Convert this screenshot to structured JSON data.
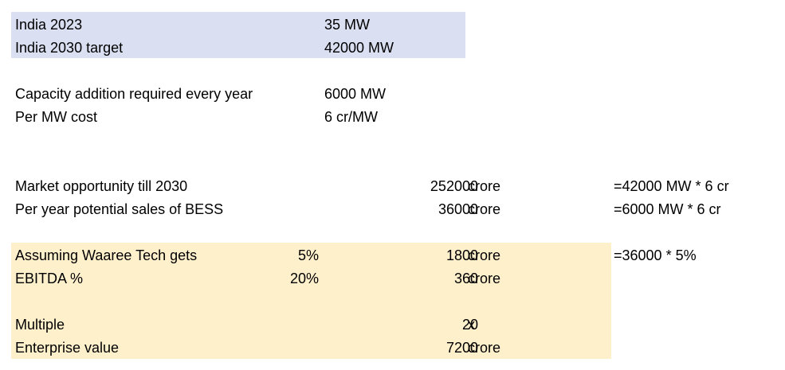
{
  "india": {
    "row_2023": {
      "label": "India 2023",
      "value": "35 MW"
    },
    "row_2030": {
      "label": "India 2030 target",
      "value": "42000 MW"
    }
  },
  "capacity": {
    "addition": {
      "label": "Capacity addition required every year",
      "value": "6000 MW"
    },
    "cost": {
      "label": "Per MW cost",
      "value": "6 cr/MW"
    }
  },
  "market": {
    "opportunity": {
      "label": "Market opportunity till 2030",
      "value": "252000",
      "unit": "crore",
      "formula": "=42000 MW * 6 cr"
    },
    "per_year": {
      "label": "Per year potential sales of BESS",
      "value": "36000",
      "unit": "crore",
      "formula": "=6000 MW * 6 cr"
    }
  },
  "valuation": {
    "share": {
      "label": "Assuming Waaree Tech gets",
      "pct": "5%",
      "value": "1800",
      "unit": "crore",
      "formula": "=36000 * 5%"
    },
    "ebitda": {
      "label": "EBITDA %",
      "pct": "20%",
      "value": "360",
      "unit": "crore"
    },
    "multiple": {
      "label": "Multiple",
      "value": "20",
      "unit": "x"
    },
    "ev": {
      "label": "Enterprise value",
      "value": "7200",
      "unit": "crore"
    }
  },
  "colors": {
    "blue_highlight": "#dae0f2",
    "yellow_highlight": "#fff0cc"
  }
}
